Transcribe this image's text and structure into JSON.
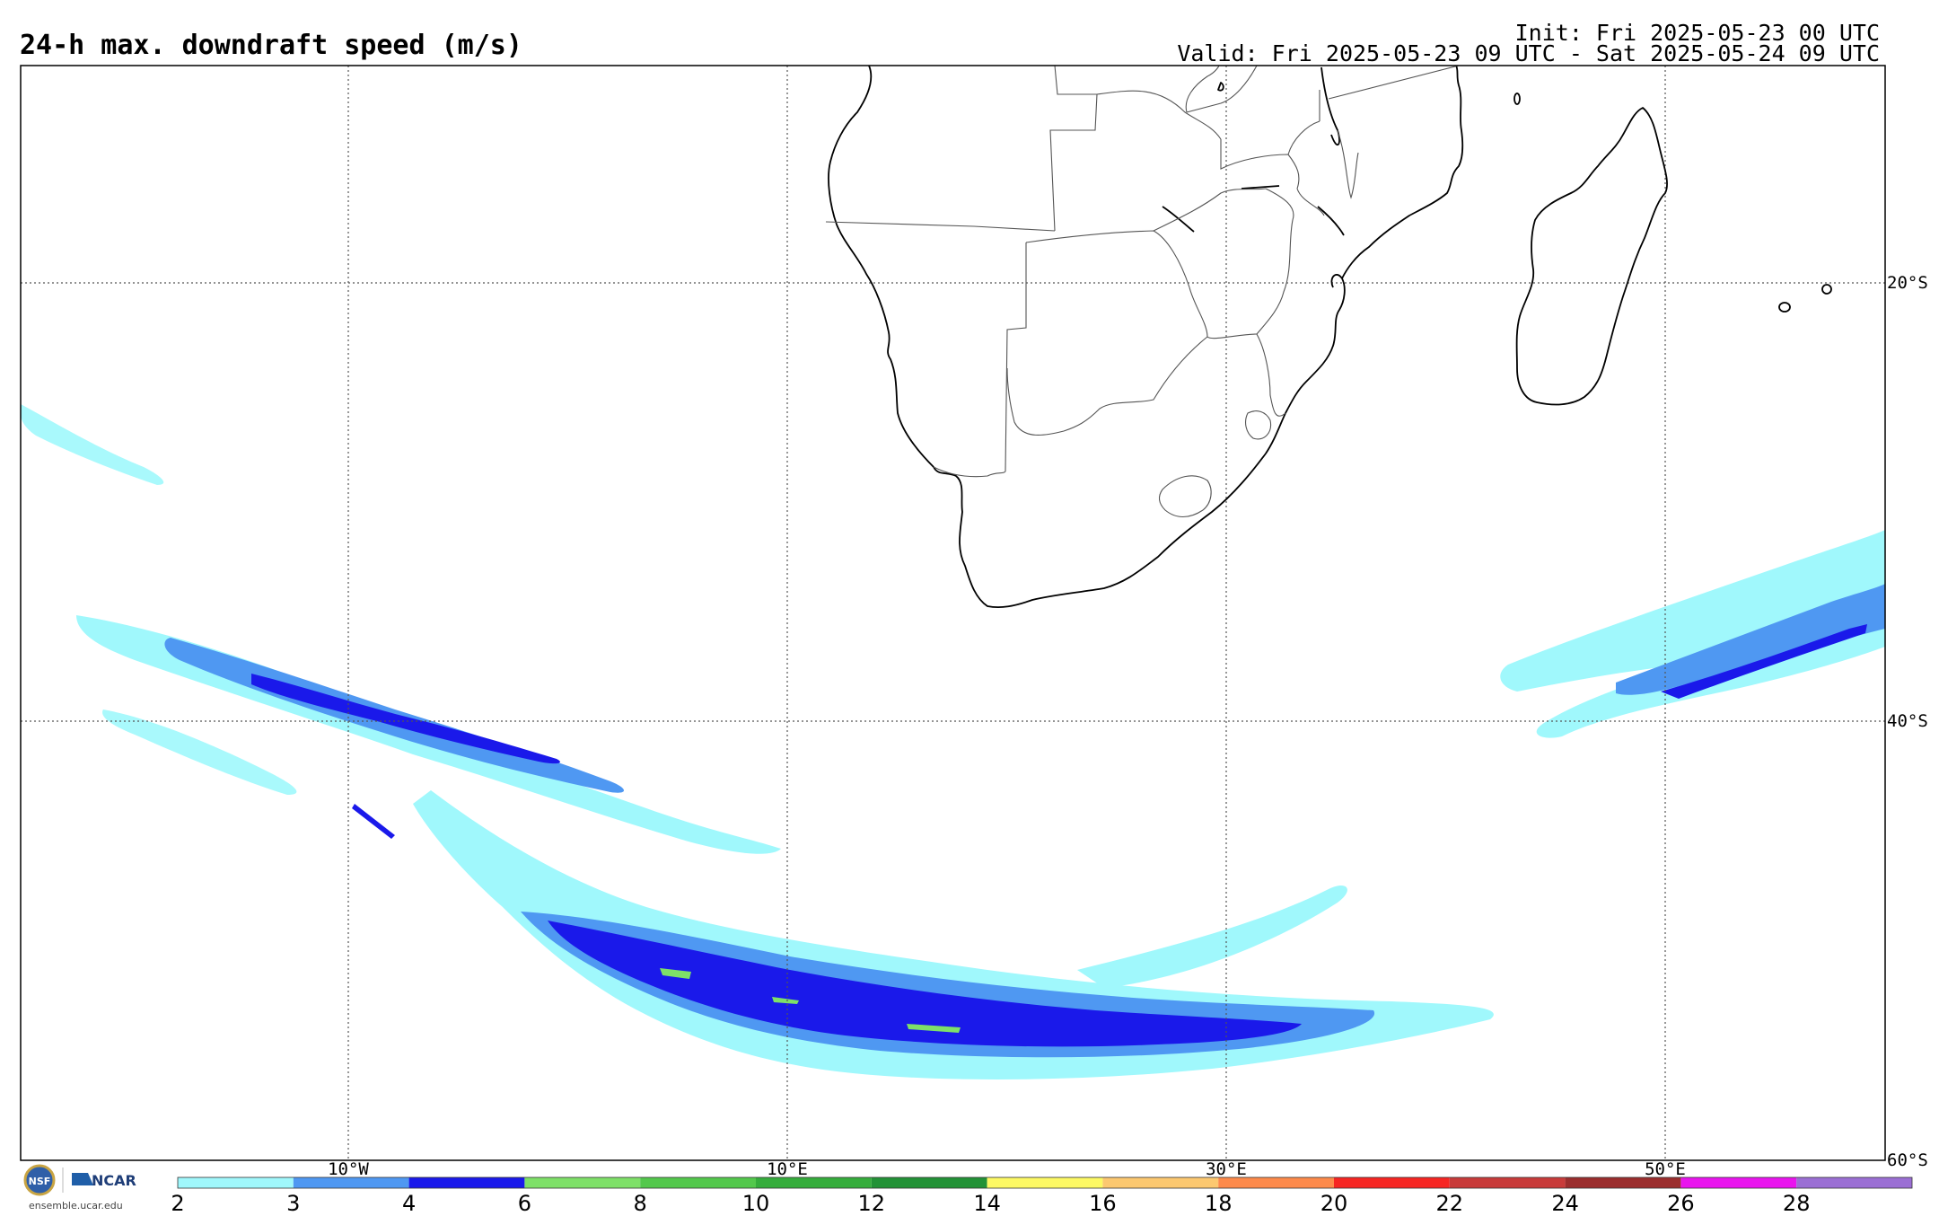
{
  "header": {
    "title": "24-h max. downdraft speed (m/s)",
    "init": "Init: Fri 2025-05-23 00 UTC",
    "valid": "Valid: Fri 2025-05-23 09 UTC - Sat 2025-05-24 09 UTC"
  },
  "map": {
    "region": "Southern Africa and South Atlantic",
    "lon_range": [
      -25,
      60
    ],
    "lat_range": [
      -60,
      -10
    ],
    "lon_labels": [
      "10°W",
      "10°E",
      "30°E",
      "50°E"
    ],
    "lat_labels": [
      "20°S",
      "40°S",
      "60°S"
    ],
    "gridline_style": "dotted"
  },
  "colorbar": {
    "levels": [
      "2",
      "3",
      "4",
      "6",
      "8",
      "10",
      "12",
      "14",
      "16",
      "18",
      "20",
      "22",
      "24",
      "26",
      "28"
    ],
    "colors": [
      "#a0f8fc",
      "#4f98f2",
      "#1a19ea",
      "#7ee068",
      "#53c84c",
      "#35ad3c",
      "#239237",
      "#fdf964",
      "#fcc870",
      "#fd8a4b",
      "#f62623",
      "#c83b3a",
      "#9b2d2d",
      "#e914ee",
      "#9b6fd4"
    ]
  },
  "footer": {
    "logo_left": "NSF",
    "logo_right": "NCAR",
    "site": "ensemble.ucar.edu"
  },
  "icons": [
    "nsf-logo-icon",
    "ncar-logo-icon"
  ]
}
